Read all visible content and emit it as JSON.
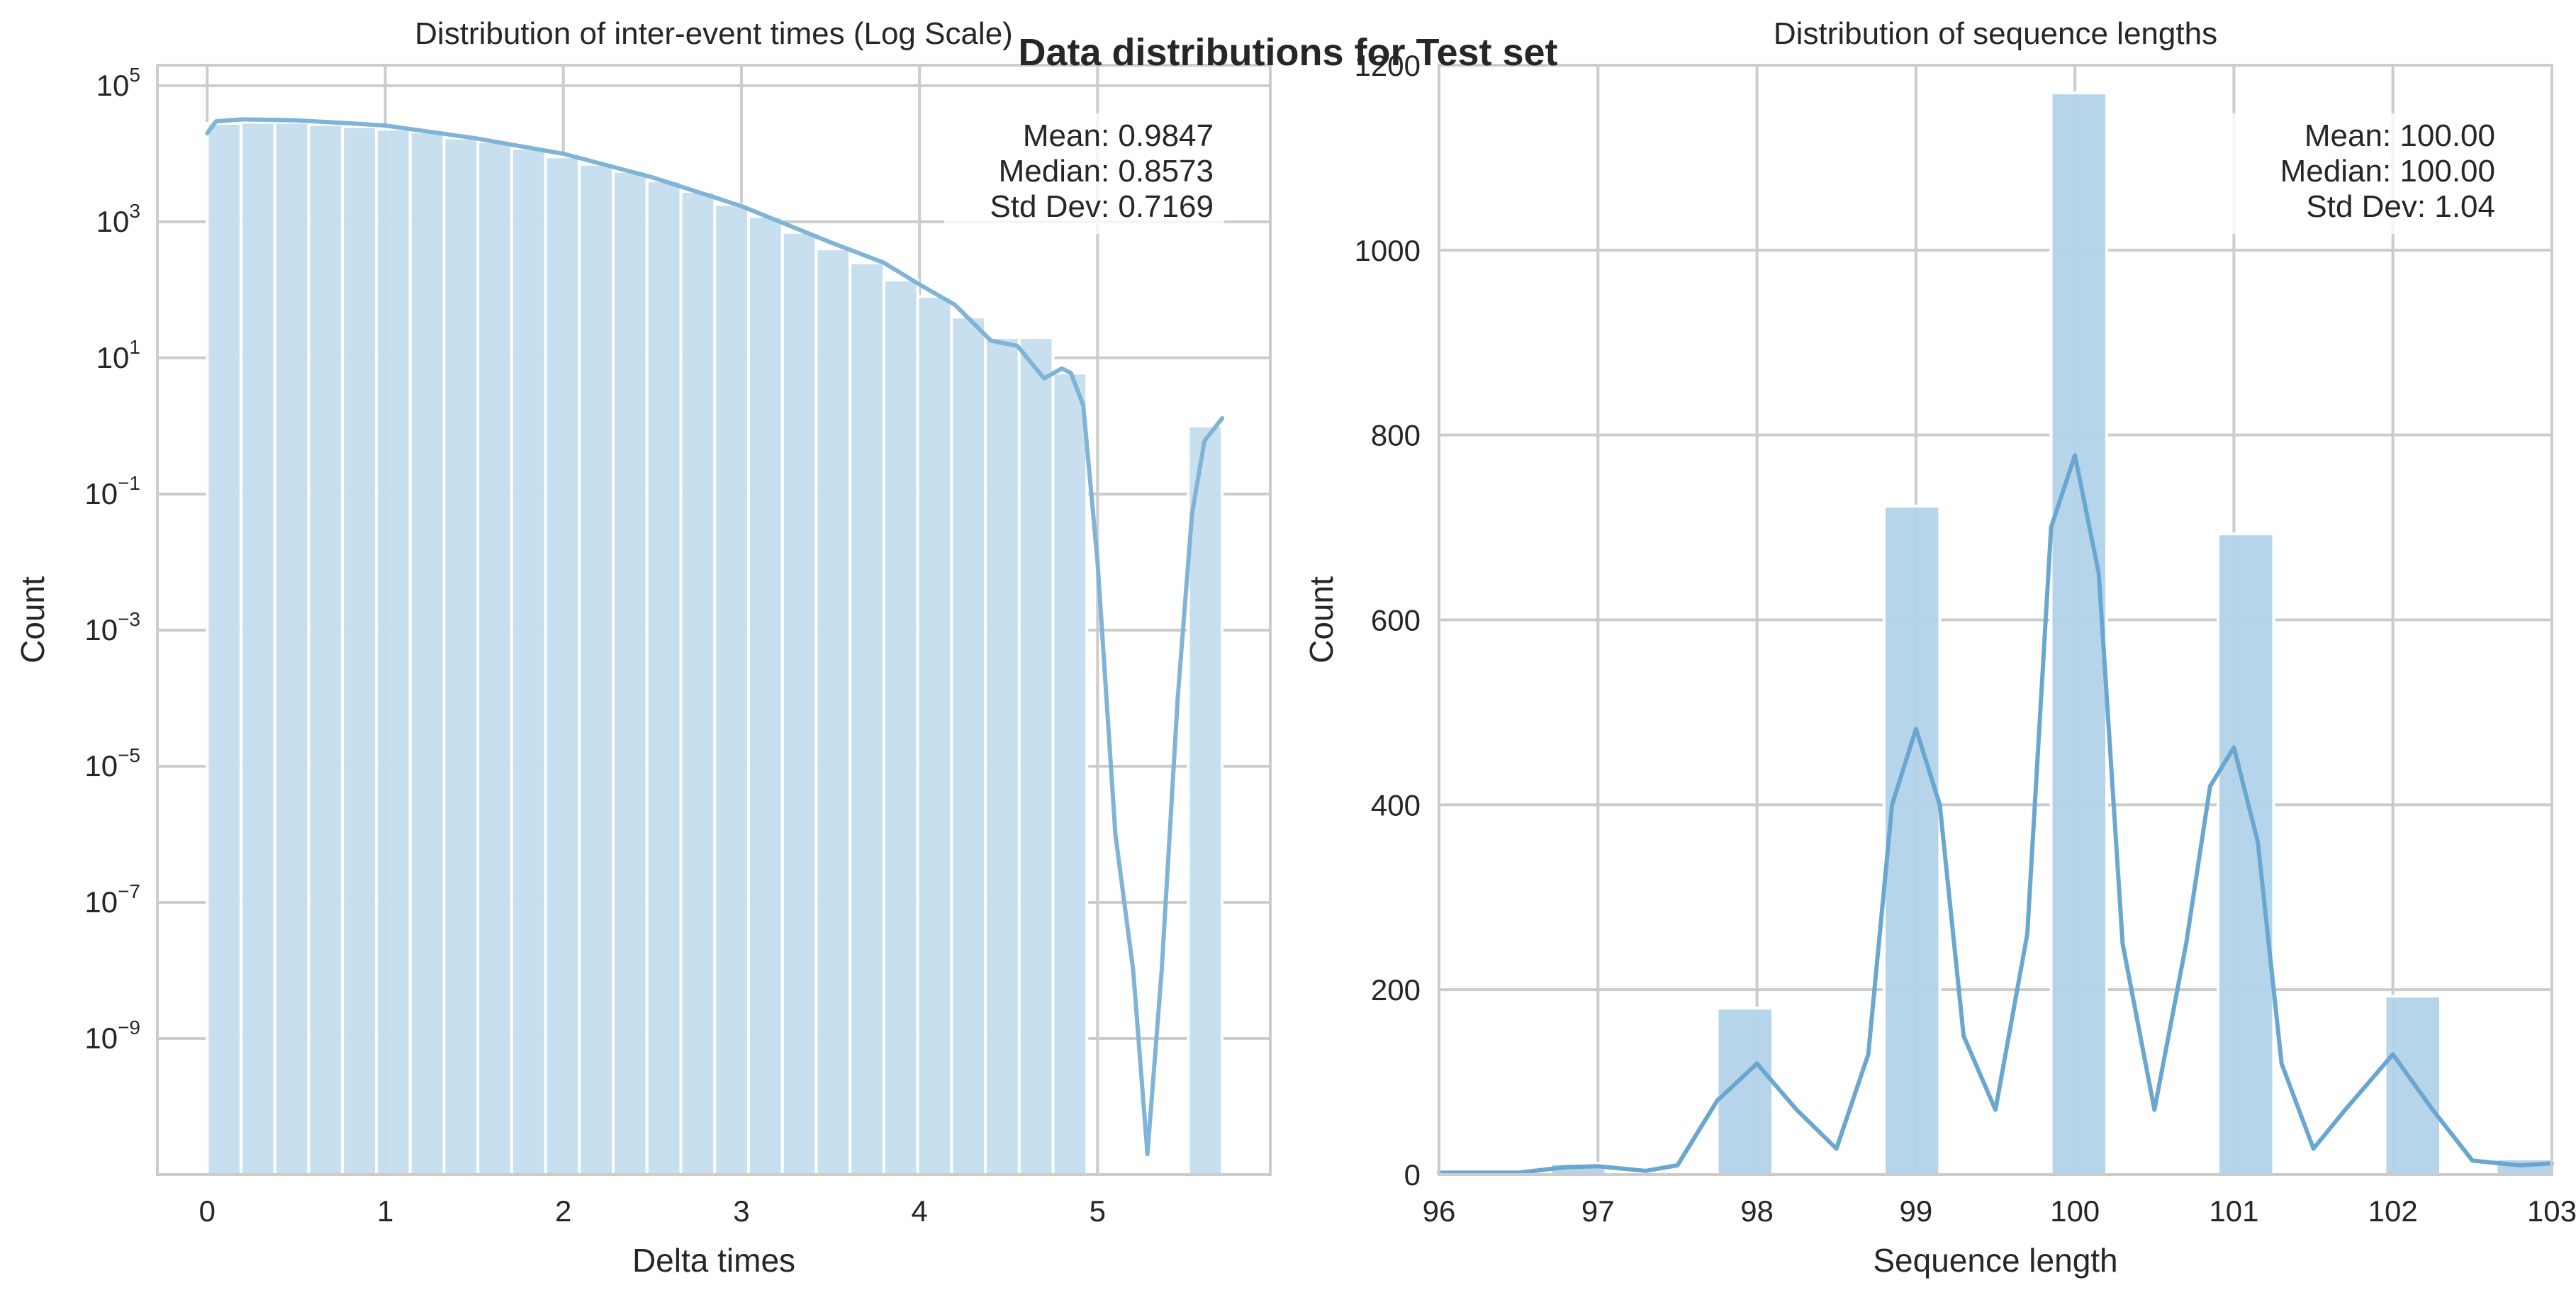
{
  "figure": {
    "suptitle": "Data distributions for Test set"
  },
  "chart_data": [
    {
      "type": "bar",
      "title": "Distribution of inter-event times (Log Scale)",
      "xlabel": "Delta times",
      "ylabel": "Count",
      "yscale": "log",
      "xlim": [
        -0.28,
        5.97
      ],
      "ylim": [
        1e-11,
        200000
      ],
      "xticks": [
        0,
        1,
        2,
        3,
        4,
        5
      ],
      "yticks": [
        {
          "base": "10",
          "exp": "5",
          "value": 100000
        },
        {
          "base": "10",
          "exp": "3",
          "value": 1000
        },
        {
          "base": "10",
          "exp": "1",
          "value": 10
        },
        {
          "base": "10",
          "exp": "−1",
          "value": 0.1
        },
        {
          "base": "10",
          "exp": "−3",
          "value": 0.001
        },
        {
          "base": "10",
          "exp": "−5",
          "value": 1e-05
        },
        {
          "base": "10",
          "exp": "−7",
          "value": 1e-07
        },
        {
          "base": "10",
          "exp": "−9",
          "value": 1e-09
        }
      ],
      "grid": true,
      "bar_color": "#c4ddee",
      "kde_color": "#7fb4d6",
      "bars": [
        {
          "x0": 0.0,
          "x1": 0.19,
          "count": 28000
        },
        {
          "x0": 0.19,
          "x1": 0.38,
          "count": 29000
        },
        {
          "x0": 0.38,
          "x1": 0.57,
          "count": 29000
        },
        {
          "x0": 0.57,
          "x1": 0.76,
          "count": 27000
        },
        {
          "x0": 0.76,
          "x1": 0.95,
          "count": 25000
        },
        {
          "x0": 0.95,
          "x1": 1.14,
          "count": 23000
        },
        {
          "x0": 1.14,
          "x1": 1.33,
          "count": 21000
        },
        {
          "x0": 1.33,
          "x1": 1.52,
          "count": 17000
        },
        {
          "x0": 1.52,
          "x1": 1.71,
          "count": 15000
        },
        {
          "x0": 1.71,
          "x1": 1.9,
          "count": 12000
        },
        {
          "x0": 1.9,
          "x1": 2.09,
          "count": 9000
        },
        {
          "x0": 2.09,
          "x1": 2.28,
          "count": 7000
        },
        {
          "x0": 2.28,
          "x1": 2.47,
          "count": 5500
        },
        {
          "x0": 2.47,
          "x1": 2.66,
          "count": 4000
        },
        {
          "x0": 2.66,
          "x1": 2.85,
          "count": 2800
        },
        {
          "x0": 2.85,
          "x1": 3.04,
          "count": 1800
        },
        {
          "x0": 3.04,
          "x1": 3.23,
          "count": 1200
        },
        {
          "x0": 3.23,
          "x1": 3.42,
          "count": 700
        },
        {
          "x0": 3.42,
          "x1": 3.61,
          "count": 400
        },
        {
          "x0": 3.61,
          "x1": 3.8,
          "count": 250
        },
        {
          "x0": 3.8,
          "x1": 3.99,
          "count": 140
        },
        {
          "x0": 3.99,
          "x1": 4.18,
          "count": 80
        },
        {
          "x0": 4.18,
          "x1": 4.37,
          "count": 40
        },
        {
          "x0": 4.37,
          "x1": 4.56,
          "count": 20
        },
        {
          "x0": 4.56,
          "x1": 4.75,
          "count": 20
        },
        {
          "x0": 4.75,
          "x1": 4.94,
          "count": 6
        },
        {
          "x0": 5.51,
          "x1": 5.7,
          "count": 1
        }
      ],
      "kde": [
        [
          0.0,
          20000
        ],
        [
          0.05,
          30000
        ],
        [
          0.2,
          32000
        ],
        [
          0.5,
          31000
        ],
        [
          0.8,
          28000
        ],
        [
          1.0,
          26000
        ],
        [
          1.5,
          17000
        ],
        [
          2.0,
          10000
        ],
        [
          2.5,
          4500
        ],
        [
          3.0,
          1700
        ],
        [
          3.5,
          500
        ],
        [
          3.8,
          250
        ],
        [
          4.0,
          120
        ],
        [
          4.2,
          60
        ],
        [
          4.4,
          18
        ],
        [
          4.55,
          15
        ],
        [
          4.7,
          5
        ],
        [
          4.8,
          7
        ],
        [
          4.85,
          6
        ],
        [
          4.92,
          2
        ],
        [
          5.0,
          0.01
        ],
        [
          5.1,
          1e-06
        ],
        [
          5.2,
          1e-08
        ],
        [
          5.28,
          2e-11
        ],
        [
          5.36,
          1e-08
        ],
        [
          5.45,
          0.0001
        ],
        [
          5.53,
          0.05
        ],
        [
          5.6,
          0.6
        ],
        [
          5.7,
          1.3
        ]
      ],
      "stats": [
        "Mean: 0.9847",
        "Median: 0.8573",
        "Std Dev: 0.7169"
      ],
      "stats_placement": "top-right"
    },
    {
      "type": "bar",
      "title": "Distribution of sequence lengths",
      "xlabel": "Sequence length",
      "ylabel": "Count",
      "xlim": [
        96,
        103
      ],
      "ylim": [
        0,
        1200
      ],
      "xticks": [
        96,
        97,
        98,
        99,
        100,
        101,
        102,
        103
      ],
      "yticks": [
        0,
        200,
        400,
        600,
        800,
        1000,
        1200
      ],
      "grid": true,
      "bar_color": "#b3d3e9",
      "kde_color": "#6aa7d0",
      "bars": [
        {
          "x0": 96.7,
          "x1": 97.05,
          "count": 12
        },
        {
          "x0": 97.75,
          "x1": 98.1,
          "count": 180
        },
        {
          "x0": 98.8,
          "x1": 99.15,
          "count": 723
        },
        {
          "x0": 99.85,
          "x1": 100.2,
          "count": 1170
        },
        {
          "x0": 100.9,
          "x1": 101.25,
          "count": 693
        },
        {
          "x0": 101.95,
          "x1": 102.3,
          "count": 193
        },
        {
          "x0": 102.65,
          "x1": 103.0,
          "count": 17
        }
      ],
      "kde": [
        [
          96.0,
          2
        ],
        [
          96.5,
          2
        ],
        [
          96.8,
          8
        ],
        [
          97.0,
          9
        ],
        [
          97.3,
          4
        ],
        [
          97.5,
          10
        ],
        [
          97.75,
          80
        ],
        [
          98.0,
          120
        ],
        [
          98.25,
          70
        ],
        [
          98.5,
          28
        ],
        [
          98.7,
          130
        ],
        [
          98.85,
          400
        ],
        [
          99.0,
          482
        ],
        [
          99.15,
          400
        ],
        [
          99.3,
          150
        ],
        [
          99.5,
          70
        ],
        [
          99.7,
          260
        ],
        [
          99.85,
          700
        ],
        [
          100.0,
          778
        ],
        [
          100.15,
          650
        ],
        [
          100.3,
          250
        ],
        [
          100.5,
          70
        ],
        [
          100.7,
          250
        ],
        [
          100.85,
          420
        ],
        [
          101.0,
          462
        ],
        [
          101.15,
          360
        ],
        [
          101.3,
          120
        ],
        [
          101.5,
          28
        ],
        [
          101.7,
          70
        ],
        [
          102.0,
          130
        ],
        [
          102.25,
          70
        ],
        [
          102.5,
          15
        ],
        [
          102.8,
          10
        ],
        [
          103.0,
          12
        ]
      ],
      "stats": [
        "Mean: 100.00",
        "Median: 100.00",
        "Std Dev: 1.04"
      ],
      "stats_placement": "top-right"
    }
  ]
}
